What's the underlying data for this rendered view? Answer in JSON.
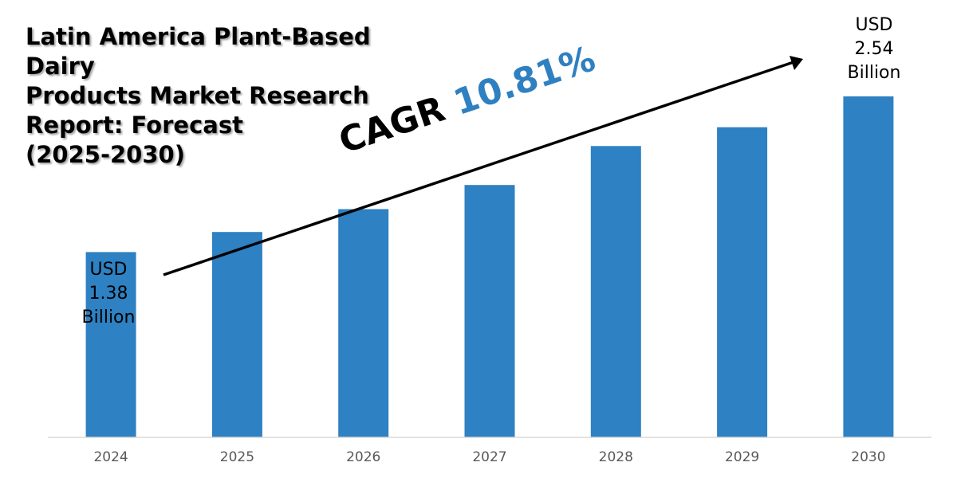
{
  "title_lines": [
    "Latin America Plant-Based Dairy",
    "Products Market Research",
    "Report: Forecast",
    "(2025-2030)"
  ],
  "cagr": {
    "label": "CAGR",
    "value": "10.81%"
  },
  "annotations": {
    "start": {
      "line1": "USD",
      "line2": "1.38",
      "line3": "Billion"
    },
    "end": {
      "line1": "USD",
      "line2": "2.54",
      "line3": "Billion"
    }
  },
  "colors": {
    "bar": "#2e81c2",
    "cagr_value": "#2f80c0",
    "axis": "#d9d9d9",
    "tick_text": "#595959"
  },
  "chart_data": {
    "type": "bar",
    "title": "Latin America Plant-Based Dairy Products Market Research Report: Forecast (2025-2030)",
    "categories": [
      "2024",
      "2025",
      "2026",
      "2027",
      "2028",
      "2029",
      "2030"
    ],
    "values": [
      1.38,
      1.53,
      1.7,
      1.88,
      2.17,
      2.31,
      2.54
    ],
    "xlabel": "",
    "ylabel": "",
    "ylim": [
      0,
      2.7
    ],
    "grid": false,
    "legend": "none"
  }
}
